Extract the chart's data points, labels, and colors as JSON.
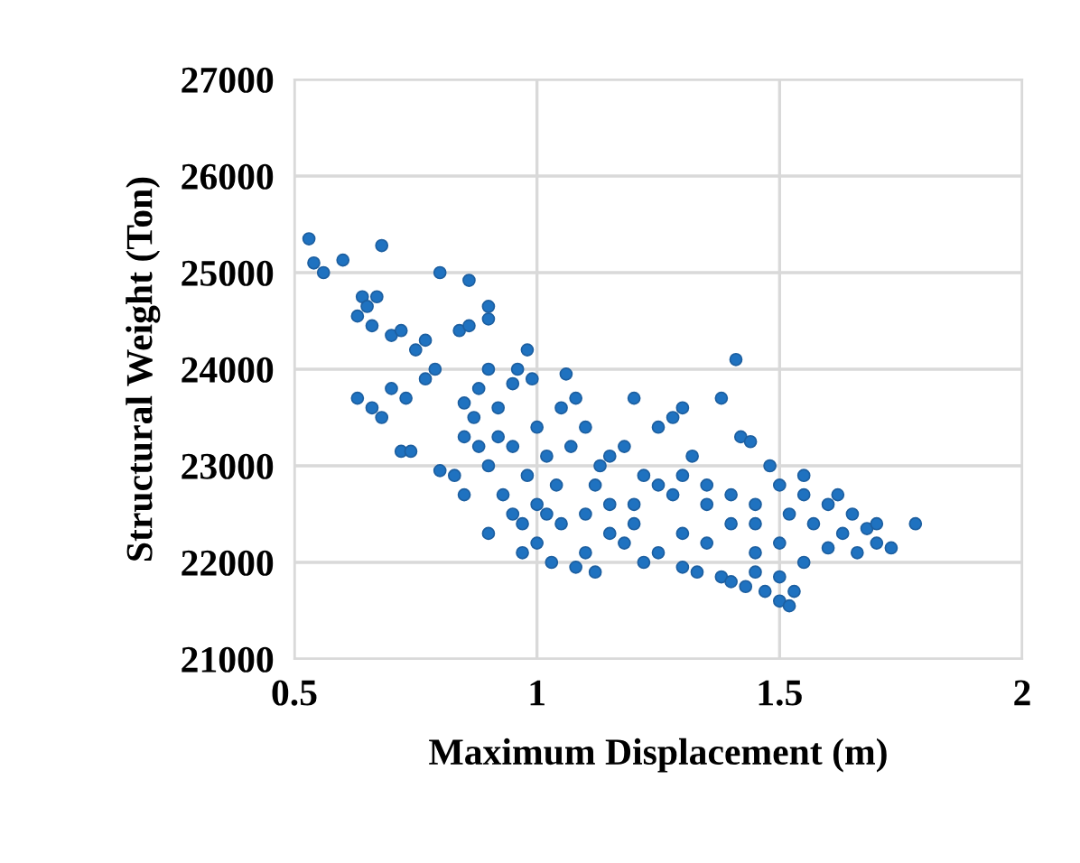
{
  "chart_data": {
    "type": "scatter",
    "xlabel": "Maximum Displacement (m)",
    "ylabel": "Structural Weight (Ton)",
    "xlim": [
      0.5,
      2
    ],
    "xticks": [
      0.5,
      1,
      1.5,
      2
    ],
    "ylim": [
      21000,
      27000
    ],
    "yticks": [
      21000,
      22000,
      23000,
      24000,
      25000,
      26000,
      27000
    ],
    "grid": true,
    "marker": "circle",
    "series": [
      {
        "color": "#1f72c0",
        "x": [
          0.53,
          0.54,
          0.56,
          0.6,
          0.64,
          0.68,
          0.63,
          0.66,
          0.65,
          0.67,
          0.7,
          0.72,
          0.75,
          0.8,
          0.77,
          0.86,
          0.84,
          0.86,
          0.9,
          0.9,
          0.63,
          0.66,
          0.68,
          0.7,
          0.72,
          0.74,
          0.77,
          0.79,
          0.73,
          0.85,
          0.88,
          0.9,
          0.95,
          0.98,
          0.96,
          0.99,
          0.8,
          0.83,
          0.85,
          0.87,
          0.9,
          0.92,
          0.93,
          0.95,
          0.97,
          1.0,
          1.0,
          1.02,
          1.05,
          1.06,
          1.08,
          1.03,
          1.08,
          1.1,
          1.12,
          1.04,
          1.07,
          1.1,
          1.13,
          1.15,
          1.18,
          1.2,
          1.2,
          1.22,
          1.25,
          1.28,
          1.3,
          1.32,
          1.35,
          1.38,
          1.41,
          1.42,
          1.44,
          1.45,
          1.48,
          1.5,
          1.52,
          1.55,
          1.57,
          1.6,
          1.63,
          1.65,
          1.68,
          1.7,
          1.73,
          1.78,
          1.66,
          1.6,
          1.55,
          1.5,
          1.45,
          1.4,
          1.35,
          1.3,
          1.25,
          1.22,
          1.28,
          1.33,
          1.38,
          1.4,
          1.43,
          1.47,
          1.5,
          1.52,
          1.53,
          1.5,
          1.45,
          1.3,
          1.18,
          1.15,
          1.12,
          1.05,
          0.98,
          0.95,
          0.88,
          1.1,
          1.2,
          1.25,
          1.3,
          1.4,
          1.45,
          1.35,
          1.0,
          0.92,
          0.97,
          0.9,
          0.85,
          1.55,
          1.62,
          1.7,
          1.02,
          1.15
        ],
        "values": [
          25350,
          25100,
          25000,
          25130,
          24750,
          25280,
          24550,
          24450,
          24650,
          24750,
          24350,
          24400,
          24200,
          25000,
          24300,
          24920,
          24400,
          24450,
          24650,
          24520,
          23700,
          23600,
          23500,
          23800,
          23150,
          23150,
          23900,
          24000,
          23700,
          23650,
          23800,
          24000,
          23850,
          24200,
          24000,
          23900,
          22950,
          22900,
          23300,
          23500,
          23000,
          23300,
          22700,
          22500,
          22400,
          22200,
          22600,
          23100,
          23600,
          23950,
          23700,
          22000,
          21950,
          22100,
          21900,
          22800,
          23200,
          23400,
          23000,
          23100,
          23200,
          22400,
          23700,
          22900,
          23400,
          23500,
          23600,
          23100,
          22800,
          23700,
          24100,
          23300,
          23250,
          22600,
          23000,
          22800,
          22500,
          22900,
          22400,
          22600,
          22300,
          22500,
          22350,
          22200,
          22150,
          22400,
          22100,
          22150,
          22000,
          22200,
          22100,
          22400,
          22600,
          22300,
          22100,
          22000,
          22700,
          21900,
          21850,
          21800,
          21750,
          21700,
          21600,
          21550,
          21700,
          21850,
          21900,
          21950,
          22200,
          22600,
          22800,
          22400,
          22900,
          23200,
          23200,
          22500,
          22600,
          22800,
          22900,
          22700,
          22400,
          22200,
          23400,
          23600,
          22100,
          22300,
          22700,
          22700,
          22700,
          22400,
          22500,
          22300
        ]
      }
    ]
  }
}
